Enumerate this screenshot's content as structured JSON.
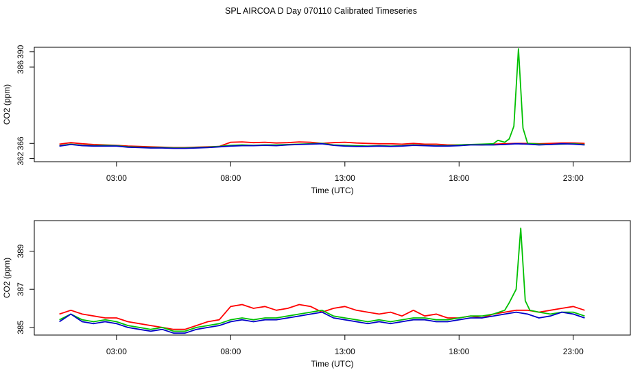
{
  "title": "SPL AIRCOA D  Day 070110  Calibrated Timeseries",
  "chart_data": [
    {
      "type": "line",
      "xlabel": "Time (UTC)",
      "ylabel": "CO2 (ppm)",
      "xlim": [
        -0.6,
        25.5
      ],
      "ylim": [
        361.2,
        391.2
      ],
      "xticks": [
        3,
        8,
        13,
        18,
        23
      ],
      "xtick_labels": [
        "03:00",
        "08:00",
        "13:00",
        "18:00",
        "23:00"
      ],
      "yticks": [
        362,
        366,
        386,
        390
      ],
      "ytick_labels": [
        "362",
        "366",
        "386",
        "390"
      ],
      "grid": false,
      "legend": "none",
      "series": [
        {
          "color": "#ff0000",
          "x": [
            0.5,
            1.0,
            1.5,
            2.0,
            2.5,
            3.0,
            3.5,
            4.0,
            4.5,
            5.0,
            5.5,
            6.0,
            6.5,
            7.0,
            7.5,
            8.0,
            8.5,
            9.0,
            9.5,
            10.0,
            10.5,
            11.0,
            11.5,
            12.0,
            12.5,
            13.0,
            13.5,
            14.0,
            14.5,
            15.0,
            15.5,
            16.0,
            16.5,
            17.0,
            17.5,
            18.0,
            18.5,
            19.0,
            19.5,
            20.0,
            20.5,
            21.0,
            21.5,
            22.0,
            22.5,
            23.0,
            23.5
          ],
          "values": [
            365.8,
            366.2,
            365.9,
            365.7,
            365.6,
            365.5,
            365.3,
            365.2,
            365.1,
            365.0,
            364.9,
            364.9,
            365.0,
            365.1,
            365.2,
            366.3,
            366.4,
            366.2,
            366.3,
            366.1,
            366.2,
            366.4,
            366.3,
            366.0,
            366.2,
            366.3,
            366.1,
            366.0,
            365.9,
            365.9,
            365.8,
            366.0,
            365.8,
            365.8,
            365.6,
            365.6,
            365.7,
            365.6,
            365.8,
            365.9,
            366.0,
            366.0,
            365.9,
            366.0,
            366.1,
            366.1,
            366.0
          ]
        },
        {
          "color": "#00c000",
          "x": [
            0.5,
            1.0,
            1.5,
            2.0,
            2.5,
            3.0,
            3.5,
            4.0,
            4.5,
            5.0,
            5.5,
            6.0,
            6.5,
            7.0,
            7.5,
            8.0,
            8.5,
            9.0,
            9.5,
            10.0,
            10.5,
            11.0,
            11.5,
            12.0,
            12.5,
            13.0,
            13.5,
            14.0,
            14.5,
            15.0,
            15.5,
            16.0,
            16.5,
            17.0,
            17.5,
            18.0,
            18.5,
            19.0,
            19.5,
            19.7,
            20.0,
            20.2,
            20.4,
            20.6,
            20.8,
            21.0,
            21.5,
            22.0,
            22.5,
            23.0,
            23.5
          ],
          "values": [
            365.4,
            365.8,
            365.5,
            365.4,
            365.5,
            365.4,
            365.1,
            365.0,
            364.9,
            364.9,
            364.8,
            364.8,
            364.9,
            365.0,
            365.2,
            365.5,
            365.6,
            365.5,
            365.6,
            365.6,
            365.7,
            365.8,
            365.9,
            366.0,
            365.6,
            365.5,
            365.4,
            365.3,
            365.4,
            365.3,
            365.4,
            365.6,
            365.5,
            365.4,
            365.4,
            365.6,
            365.7,
            365.8,
            365.9,
            366.8,
            366.3,
            367.2,
            370.5,
            390.8,
            370.0,
            366.0,
            365.8,
            365.7,
            365.8,
            365.9,
            365.7
          ]
        },
        {
          "color": "#0000c8",
          "x": [
            0.5,
            1.0,
            1.5,
            2.0,
            2.5,
            3.0,
            3.5,
            4.0,
            4.5,
            5.0,
            5.5,
            6.0,
            6.5,
            7.0,
            7.5,
            8.0,
            8.5,
            9.0,
            9.5,
            10.0,
            10.5,
            11.0,
            11.5,
            12.0,
            12.5,
            13.0,
            13.5,
            14.0,
            14.5,
            15.0,
            15.5,
            16.0,
            16.5,
            17.0,
            17.5,
            18.0,
            18.5,
            19.0,
            19.5,
            20.0,
            20.5,
            21.0,
            21.5,
            22.0,
            22.5,
            23.0,
            23.5
          ],
          "values": [
            365.3,
            365.7,
            365.4,
            365.3,
            365.3,
            365.3,
            365.0,
            364.9,
            364.8,
            364.8,
            364.7,
            364.7,
            364.8,
            364.9,
            365.1,
            365.3,
            365.4,
            365.4,
            365.5,
            365.4,
            365.6,
            365.7,
            365.8,
            365.9,
            365.5,
            365.3,
            365.2,
            365.2,
            365.3,
            365.2,
            365.3,
            365.5,
            365.4,
            365.3,
            365.3,
            365.4,
            365.6,
            365.6,
            365.6,
            365.7,
            365.9,
            365.8,
            365.6,
            365.7,
            365.9,
            365.8,
            365.6
          ]
        }
      ]
    },
    {
      "type": "line",
      "xlabel": "Time (UTC)",
      "ylabel": "CO2 (ppm)",
      "xlim": [
        -0.6,
        25.5
      ],
      "ylim": [
        384.6,
        390.6
      ],
      "xticks": [
        3,
        8,
        13,
        18,
        23
      ],
      "xtick_labels": [
        "03:00",
        "08:00",
        "13:00",
        "18:00",
        "23:00"
      ],
      "yticks": [
        385,
        387,
        389
      ],
      "ytick_labels": [
        "385",
        "387",
        "389"
      ],
      "grid": false,
      "legend": "none",
      "series": [
        {
          "color": "#ff0000",
          "x": [
            0.5,
            1.0,
            1.5,
            2.0,
            2.5,
            3.0,
            3.5,
            4.0,
            4.5,
            5.0,
            5.5,
            6.0,
            6.5,
            7.0,
            7.5,
            8.0,
            8.5,
            9.0,
            9.5,
            10.0,
            10.5,
            11.0,
            11.5,
            12.0,
            12.5,
            13.0,
            13.5,
            14.0,
            14.5,
            15.0,
            15.5,
            16.0,
            16.5,
            17.0,
            17.5,
            18.0,
            18.5,
            19.0,
            19.5,
            20.0,
            20.5,
            21.0,
            21.5,
            22.0,
            22.5,
            23.0,
            23.5
          ],
          "values": [
            385.7,
            385.9,
            385.7,
            385.6,
            385.5,
            385.5,
            385.3,
            385.2,
            385.1,
            385.0,
            384.9,
            384.9,
            385.1,
            385.3,
            385.4,
            386.1,
            386.2,
            386.0,
            386.1,
            385.9,
            386.0,
            386.2,
            386.1,
            385.8,
            386.0,
            386.1,
            385.9,
            385.8,
            385.7,
            385.8,
            385.6,
            385.9,
            385.6,
            385.7,
            385.5,
            385.5,
            385.6,
            385.5,
            385.7,
            385.8,
            385.9,
            385.9,
            385.8,
            385.9,
            386.0,
            386.1,
            385.9
          ]
        },
        {
          "color": "#00c000",
          "x": [
            0.5,
            1.0,
            1.5,
            2.0,
            2.5,
            3.0,
            3.5,
            4.0,
            4.5,
            5.0,
            5.5,
            6.0,
            6.5,
            7.0,
            7.5,
            8.0,
            8.5,
            9.0,
            9.5,
            10.0,
            10.5,
            11.0,
            11.5,
            12.0,
            12.5,
            13.0,
            13.5,
            14.0,
            14.5,
            15.0,
            15.5,
            16.0,
            16.5,
            17.0,
            17.5,
            18.0,
            18.5,
            19.0,
            19.5,
            20.0,
            20.2,
            20.5,
            20.7,
            20.9,
            21.1,
            21.5,
            22.0,
            22.5,
            23.0,
            23.5
          ],
          "values": [
            385.4,
            385.7,
            385.4,
            385.3,
            385.4,
            385.3,
            385.1,
            385.0,
            384.9,
            385.0,
            384.8,
            384.8,
            385.0,
            385.1,
            385.2,
            385.4,
            385.5,
            385.4,
            385.5,
            385.5,
            385.6,
            385.7,
            385.8,
            385.9,
            385.6,
            385.5,
            385.4,
            385.3,
            385.4,
            385.3,
            385.4,
            385.5,
            385.5,
            385.4,
            385.4,
            385.5,
            385.6,
            385.6,
            385.7,
            385.9,
            386.3,
            387.0,
            390.2,
            386.4,
            385.9,
            385.8,
            385.7,
            385.8,
            385.8,
            385.6
          ]
        },
        {
          "color": "#0000c8",
          "x": [
            0.5,
            1.0,
            1.5,
            2.0,
            2.5,
            3.0,
            3.5,
            4.0,
            4.5,
            5.0,
            5.5,
            6.0,
            6.5,
            7.0,
            7.5,
            8.0,
            8.5,
            9.0,
            9.5,
            10.0,
            10.5,
            11.0,
            11.5,
            12.0,
            12.5,
            13.0,
            13.5,
            14.0,
            14.5,
            15.0,
            15.5,
            16.0,
            16.5,
            17.0,
            17.5,
            18.0,
            18.5,
            19.0,
            19.5,
            20.0,
            20.5,
            21.0,
            21.5,
            22.0,
            22.5,
            23.0,
            23.5
          ],
          "values": [
            385.3,
            385.7,
            385.3,
            385.2,
            385.3,
            385.2,
            385.0,
            384.9,
            384.8,
            384.9,
            384.7,
            384.7,
            384.9,
            385.0,
            385.1,
            385.3,
            385.4,
            385.3,
            385.4,
            385.4,
            385.5,
            385.6,
            385.7,
            385.8,
            385.5,
            385.4,
            385.3,
            385.2,
            385.3,
            385.2,
            385.3,
            385.4,
            385.4,
            385.3,
            385.3,
            385.4,
            385.5,
            385.5,
            385.6,
            385.7,
            385.8,
            385.7,
            385.5,
            385.6,
            385.8,
            385.7,
            385.5
          ]
        }
      ]
    }
  ]
}
